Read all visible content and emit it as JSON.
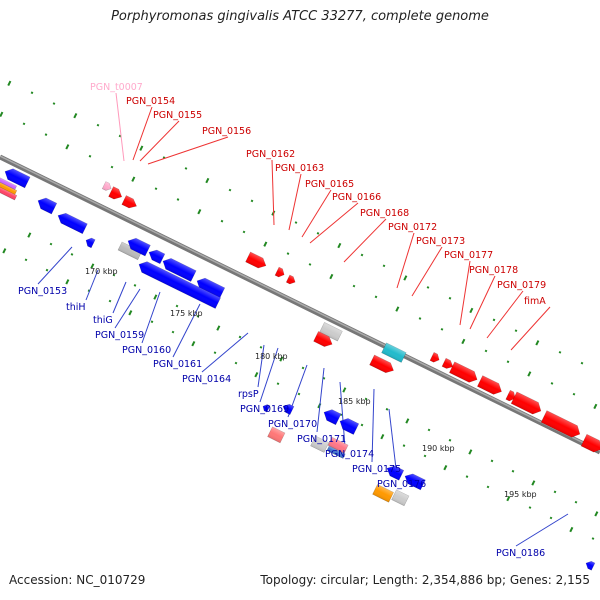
{
  "title": "Porphyromonas gingivalis ATCC 33277, complete genome",
  "footer": {
    "accession": "Accession: NC_010729",
    "summary": "Topology: circular; Length: 2,354,886 bp; Genes: 2,155"
  },
  "colors": {
    "forward_gene": "#ff0000",
    "reverse_gene": "#0000ff",
    "rna_gene": "#ffaacc",
    "forward_label": "#cc0000",
    "reverse_label": "#0000aa",
    "backbone": "#888888",
    "tick": "#228822"
  },
  "scale": {
    "unit": "kbp",
    "ticks": [
      {
        "value": 170,
        "label": "170 kbp"
      },
      {
        "value": 175,
        "label": "175 kbp"
      },
      {
        "value": 180,
        "label": "180 kbp"
      },
      {
        "value": 185,
        "label": "185 kbp"
      },
      {
        "value": 190,
        "label": "190 kbp"
      },
      {
        "value": 195,
        "label": "195 kbp"
      }
    ]
  },
  "forward_labels": [
    "PGN_t0007",
    "PGN_0154",
    "PGN_0155",
    "PGN_0156",
    "PGN_0162",
    "PGN_0163",
    "PGN_0165",
    "PGN_0166",
    "PGN_0168",
    "PGN_0172",
    "PGN_0173",
    "PGN_0177",
    "PGN_0178",
    "PGN_0179",
    "fimA"
  ],
  "reverse_labels": [
    "PGN_0153",
    "thiH",
    "thiG",
    "PGN_0159",
    "PGN_0160",
    "PGN_0161",
    "PGN_0164",
    "rpsP",
    "PGN_0169",
    "PGN_0170",
    "PGN_0171",
    "PGN_0174",
    "PGN_0175",
    "PGN_0176",
    "PGN_0186"
  ]
}
